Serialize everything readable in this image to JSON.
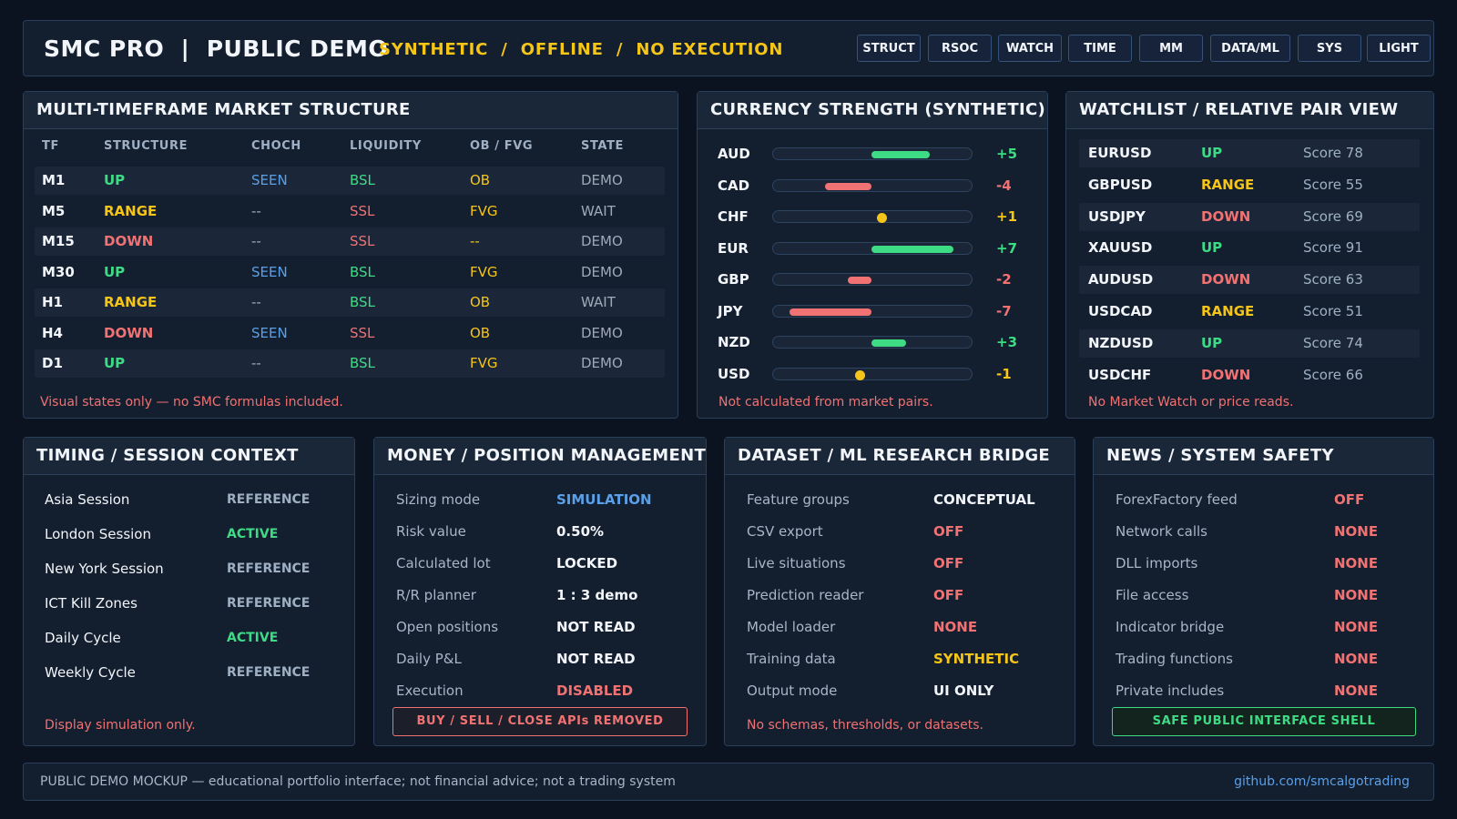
{
  "colors": {
    "up": "#3ddc84",
    "down": "#f07272",
    "range": "#f5c518",
    "seen": "#5aa0e8",
    "muted": "#9fa9b6",
    "white": "#f2f5f9",
    "neutral": "#f5c518",
    "warn": "#f07272",
    "ok": "#3ddc84",
    "ref": "#9fb0c4",
    "info": "#5aa0e8"
  },
  "header": {
    "title": "SMC PRO  |  PUBLIC DEMO",
    "subtitle": "SYNTHETIC  /  OFFLINE  /  NO EXECUTION",
    "nav": [
      "STRUCT",
      "RSOC",
      "WATCH",
      "TIME",
      "MM",
      "DATA/ML",
      "SYS",
      "LIGHT"
    ]
  },
  "structure": {
    "title": "MULTI-TIMEFRAME MARKET STRUCTURE",
    "columns": [
      "TF",
      "STRUCTURE",
      "CHOCH",
      "LIQUIDITY",
      "OB / FVG",
      "STATE"
    ],
    "rows": [
      {
        "tf": "M1",
        "structure": "UP",
        "choch": "SEEN",
        "liquidity": "BSL",
        "obfvg": "OB",
        "state": "DEMO"
      },
      {
        "tf": "M5",
        "structure": "RANGE",
        "choch": "--",
        "liquidity": "SSL",
        "obfvg": "FVG",
        "state": "WAIT"
      },
      {
        "tf": "M15",
        "structure": "DOWN",
        "choch": "--",
        "liquidity": "SSL",
        "obfvg": "--",
        "state": "DEMO"
      },
      {
        "tf": "M30",
        "structure": "UP",
        "choch": "SEEN",
        "liquidity": "BSL",
        "obfvg": "FVG",
        "state": "DEMO"
      },
      {
        "tf": "H1",
        "structure": "RANGE",
        "choch": "--",
        "liquidity": "BSL",
        "obfvg": "OB",
        "state": "WAIT"
      },
      {
        "tf": "H4",
        "structure": "DOWN",
        "choch": "SEEN",
        "liquidity": "SSL",
        "obfvg": "OB",
        "state": "DEMO"
      },
      {
        "tf": "D1",
        "structure": "UP",
        "choch": "--",
        "liquidity": "BSL",
        "obfvg": "FVG",
        "state": "DEMO"
      }
    ],
    "note": "Visual states only — no SMC formulas included."
  },
  "strength": {
    "title": "CURRENCY STRENGTH (SYNTHETIC)",
    "scale_max": 10,
    "items": [
      {
        "currency": "AUD",
        "label": "+5",
        "value": 5
      },
      {
        "currency": "CAD",
        "label": "-4",
        "value": -4
      },
      {
        "currency": "CHF",
        "label": "+1",
        "value": 1
      },
      {
        "currency": "EUR",
        "label": "+7",
        "value": 7
      },
      {
        "currency": "GBP",
        "label": "-2",
        "value": -2
      },
      {
        "currency": "JPY",
        "label": "-7",
        "value": -7
      },
      {
        "currency": "NZD",
        "label": "+3",
        "value": 3
      },
      {
        "currency": "USD",
        "label": "-1",
        "value": -1
      }
    ],
    "note": "Not calculated from market pairs."
  },
  "watchlist": {
    "title": "WATCHLIST / RELATIVE PAIR VIEW",
    "rows": [
      {
        "pair": "EURUSD",
        "trend": "UP",
        "score": "Score 78"
      },
      {
        "pair": "GBPUSD",
        "trend": "RANGE",
        "score": "Score 55"
      },
      {
        "pair": "USDJPY",
        "trend": "DOWN",
        "score": "Score 69"
      },
      {
        "pair": "XAUUSD",
        "trend": "UP",
        "score": "Score 91"
      },
      {
        "pair": "AUDUSD",
        "trend": "DOWN",
        "score": "Score 63"
      },
      {
        "pair": "USDCAD",
        "trend": "RANGE",
        "score": "Score 51"
      },
      {
        "pair": "NZDUSD",
        "trend": "UP",
        "score": "Score 74"
      },
      {
        "pair": "USDCHF",
        "trend": "DOWN",
        "score": "Score 66"
      }
    ],
    "note": "No Market Watch or price reads."
  },
  "timing": {
    "title": "TIMING / SESSION CONTEXT",
    "rows": [
      {
        "label": "Asia Session",
        "status": "REFERENCE"
      },
      {
        "label": "London Session",
        "status": "ACTIVE"
      },
      {
        "label": "New York Session",
        "status": "REFERENCE"
      },
      {
        "label": "ICT Kill Zones",
        "status": "REFERENCE"
      },
      {
        "label": "Daily Cycle",
        "status": "ACTIVE"
      },
      {
        "label": "Weekly Cycle",
        "status": "REFERENCE"
      }
    ],
    "note": "Display simulation only."
  },
  "money": {
    "title": "MONEY / POSITION MANAGEMENT",
    "rows": [
      {
        "label": "Sizing mode",
        "value": "SIMULATION",
        "tone": "info"
      },
      {
        "label": "Risk value",
        "value": "0.50%",
        "tone": "white"
      },
      {
        "label": "Calculated lot",
        "value": "LOCKED",
        "tone": "white"
      },
      {
        "label": "R/R planner",
        "value": "1 : 3 demo",
        "tone": "white"
      },
      {
        "label": "Open positions",
        "value": "NOT READ",
        "tone": "white"
      },
      {
        "label": "Daily P&L",
        "value": "NOT READ",
        "tone": "white"
      },
      {
        "label": "Execution",
        "value": "DISABLED",
        "tone": "warn"
      }
    ],
    "alert": "BUY / SELL / CLOSE APIs REMOVED"
  },
  "dataset": {
    "title": "DATASET / ML RESEARCH BRIDGE",
    "rows": [
      {
        "label": "Feature groups",
        "value": "CONCEPTUAL",
        "tone": "white"
      },
      {
        "label": "CSV export",
        "value": "OFF",
        "tone": "warn"
      },
      {
        "label": "Live situations",
        "value": "OFF",
        "tone": "warn"
      },
      {
        "label": "Prediction reader",
        "value": "OFF",
        "tone": "warn"
      },
      {
        "label": "Model loader",
        "value": "NONE",
        "tone": "warn"
      },
      {
        "label": "Training data",
        "value": "SYNTHETIC",
        "tone": "neutral"
      },
      {
        "label": "Output mode",
        "value": "UI ONLY",
        "tone": "white"
      }
    ],
    "note": "No schemas, thresholds, or datasets."
  },
  "safety": {
    "title": "NEWS / SYSTEM SAFETY",
    "rows": [
      {
        "label": "ForexFactory feed",
        "value": "OFF",
        "tone": "warn"
      },
      {
        "label": "Network calls",
        "value": "NONE",
        "tone": "warn"
      },
      {
        "label": "DLL imports",
        "value": "NONE",
        "tone": "warn"
      },
      {
        "label": "File access",
        "value": "NONE",
        "tone": "warn"
      },
      {
        "label": "Indicator bridge",
        "value": "NONE",
        "tone": "warn"
      },
      {
        "label": "Trading functions",
        "value": "NONE",
        "tone": "warn"
      },
      {
        "label": "Private includes",
        "value": "NONE",
        "tone": "warn"
      }
    ],
    "badge": "SAFE PUBLIC INTERFACE SHELL"
  },
  "footer": {
    "text": "PUBLIC DEMO MOCKUP — educational portfolio interface; not financial advice; not a trading system",
    "link": "github.com/smcalgotrading"
  }
}
